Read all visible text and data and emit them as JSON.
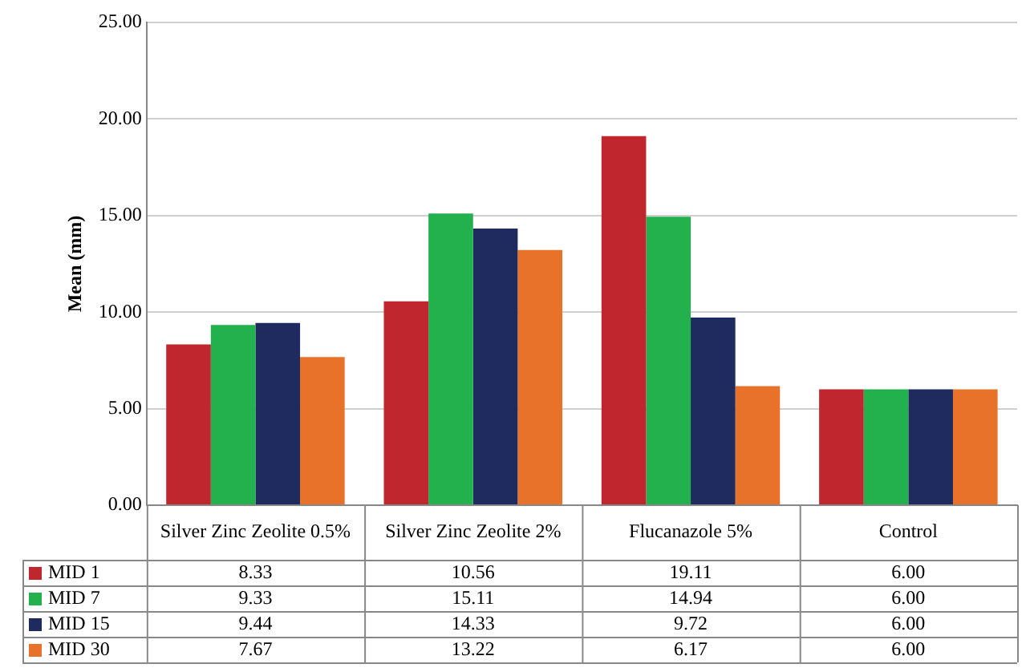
{
  "chart_data": {
    "type": "bar",
    "ylabel": "Mean (mm)",
    "categories": [
      "Silver Zinc Zeolite 0.5%",
      "Silver Zinc Zeolite 2%",
      "Flucanazole 5%",
      "Control"
    ],
    "series": [
      {
        "name": "MID 1",
        "color": "#c0262d",
        "values": [
          8.33,
          10.56,
          19.11,
          6.0
        ],
        "value_labels": [
          "8.33",
          "10.56",
          "19.11",
          "6.00"
        ]
      },
      {
        "name": "MID 7",
        "color": "#22b14c",
        "values": [
          9.33,
          15.11,
          14.94,
          6.0
        ],
        "value_labels": [
          "9.33",
          "15.11",
          "14.94",
          "6.00"
        ]
      },
      {
        "name": "MID 15",
        "color": "#1f2a5e",
        "values": [
          9.44,
          14.33,
          9.72,
          6.0
        ],
        "value_labels": [
          "9.44",
          "14.33",
          "9.72",
          "6.00"
        ]
      },
      {
        "name": "MID 30",
        "color": "#e8722a",
        "values": [
          7.67,
          13.22,
          6.17,
          6.0
        ],
        "value_labels": [
          "7.67",
          "13.22",
          "6.17",
          "6.00"
        ]
      }
    ],
    "ylim": [
      0,
      25
    ],
    "yticks": [
      {
        "value": 0,
        "label": "0.00"
      },
      {
        "value": 5,
        "label": "5.00"
      },
      {
        "value": 10,
        "label": "10.00"
      },
      {
        "value": 15,
        "label": "15.00"
      },
      {
        "value": 20,
        "label": "20.00"
      },
      {
        "value": 25,
        "label": "25.00"
      }
    ],
    "grid": "y",
    "legend": "bottom"
  }
}
